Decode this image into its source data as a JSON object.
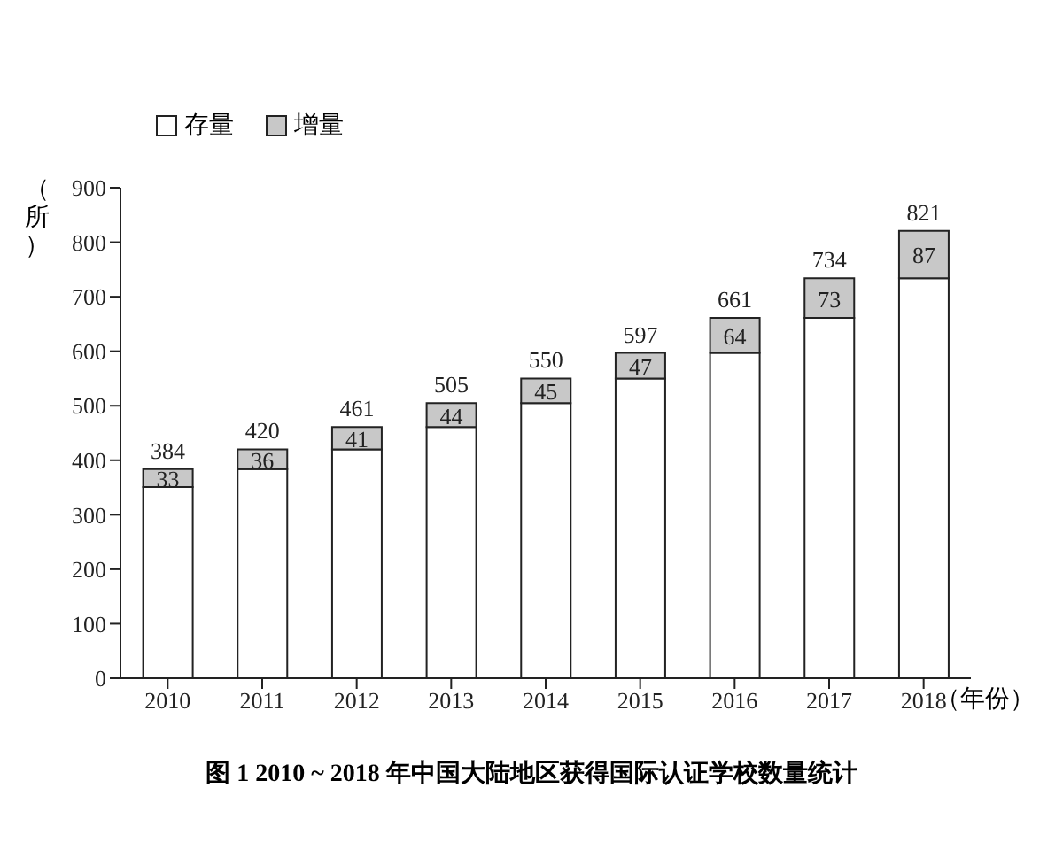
{
  "chart_data": {
    "type": "bar",
    "title": "图 1   2010 ~ 2018 年中国大陆地区获得国际认证学校数量统计",
    "ylabel": "（所）",
    "xlabel": "（年份）",
    "categories": [
      "2010",
      "2011",
      "2012",
      "2013",
      "2014",
      "2015",
      "2016",
      "2017",
      "2018"
    ],
    "stacked": true,
    "series": [
      {
        "name": "存量",
        "color": "#ffffff",
        "values": [
          351,
          384,
          420,
          461,
          505,
          550,
          597,
          661,
          734
        ]
      },
      {
        "name": "增量",
        "color": "#c8c8c8",
        "values": [
          33,
          36,
          41,
          44,
          45,
          47,
          64,
          73,
          87
        ],
        "value_labels": [
          "33",
          "36",
          "41",
          "44",
          "45",
          "47",
          "64",
          "73",
          "87"
        ]
      }
    ],
    "totals": [
      "384",
      "420",
      "461",
      "505",
      "550",
      "597",
      "661",
      "734",
      "821"
    ],
    "ylim": [
      0,
      900
    ],
    "yticks": [
      0,
      100,
      200,
      300,
      400,
      500,
      600,
      700,
      800,
      900
    ],
    "legend": "top left"
  }
}
